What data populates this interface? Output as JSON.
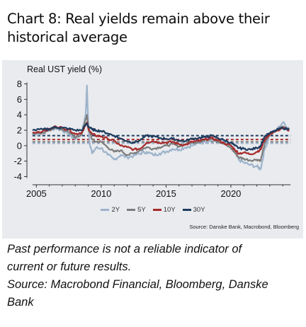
{
  "title_line1": "Chart 8: Real yields remain above their",
  "title_line2": "historical average",
  "footer": {
    "line1": "Past performance is not a reliable indicator of",
    "line2": "current or future results.",
    "line3": "Source: Macrobond Financial, Bloomberg, Danske",
    "line4": "Bank"
  },
  "chart_data": {
    "type": "line",
    "title": "",
    "ylabel": "Real UST yield (%)",
    "xlabel": "",
    "xlim": [
      2004.6,
      2024.7
    ],
    "ylim": [
      -4.6,
      8.6
    ],
    "x_ticks": [
      "2005",
      "2010",
      "2015",
      "2020"
    ],
    "y_ticks": [
      "8",
      "6",
      "4",
      "2",
      "0",
      "-2",
      "-4"
    ],
    "source": "Source: Danske Bank, Macrobond, Bloomberg",
    "legend_position": "bottom",
    "series": [
      {
        "name": "2Y",
        "color": "#9db3cc",
        "average": 0.3,
        "x": [
          2004.7,
          2005.5,
          2006.0,
          2006.5,
          2007.0,
          2007.5,
          2008.0,
          2008.5,
          2008.8,
          2008.9,
          2009.0,
          2009.1,
          2009.3,
          2009.6,
          2010.0,
          2010.5,
          2011.0,
          2011.5,
          2012.0,
          2012.5,
          2013.0,
          2013.5,
          2014.0,
          2014.5,
          2015.0,
          2015.5,
          2016.0,
          2016.5,
          2017.0,
          2017.5,
          2018.0,
          2018.5,
          2019.0,
          2019.5,
          2020.0,
          2020.3,
          2020.6,
          2021.0,
          2021.5,
          2022.0,
          2022.3,
          2022.6,
          2023.0,
          2023.5,
          2024.0,
          2024.5
        ],
        "values": [
          1.5,
          1.6,
          2.0,
          2.3,
          2.0,
          1.5,
          0.8,
          1.8,
          4.0,
          7.8,
          3.0,
          0.5,
          -1.0,
          -0.3,
          -0.3,
          -1.2,
          -1.8,
          -1.2,
          -1.5,
          -1.3,
          -1.0,
          -0.8,
          -1.2,
          -1.0,
          -0.8,
          -0.4,
          -0.5,
          -0.2,
          0.0,
          0.3,
          0.5,
          0.8,
          0.6,
          0.4,
          0.0,
          -0.8,
          -1.8,
          -2.2,
          -2.5,
          -2.7,
          -3.0,
          -0.5,
          1.5,
          2.0,
          3.0,
          2.2
        ]
      },
      {
        "name": "5Y",
        "color": "#7c7c7c",
        "average": 0.5,
        "x": [
          2004.7,
          2005.5,
          2006.0,
          2006.5,
          2007.0,
          2007.5,
          2008.0,
          2008.5,
          2008.9,
          2009.0,
          2009.3,
          2009.6,
          2010.0,
          2010.5,
          2011.0,
          2011.5,
          2012.0,
          2012.5,
          2013.0,
          2013.5,
          2014.0,
          2014.5,
          2015.0,
          2015.5,
          2016.0,
          2016.5,
          2017.0,
          2017.5,
          2018.0,
          2018.5,
          2019.0,
          2019.5,
          2020.0,
          2020.3,
          2020.6,
          2021.0,
          2021.5,
          2022.0,
          2022.3,
          2022.6,
          2023.0,
          2023.5,
          2024.0,
          2024.5
        ],
        "values": [
          1.6,
          1.7,
          2.0,
          2.4,
          2.1,
          1.8,
          1.0,
          1.5,
          4.0,
          2.5,
          0.8,
          0.5,
          0.5,
          -0.2,
          -0.8,
          -0.6,
          -1.2,
          -1.0,
          -0.6,
          -0.2,
          -0.4,
          -0.2,
          0.0,
          0.2,
          -0.1,
          0.2,
          0.4,
          0.5,
          0.7,
          1.0,
          0.5,
          0.2,
          -0.3,
          -0.9,
          -1.5,
          -1.7,
          -1.9,
          -1.8,
          -1.9,
          0.2,
          1.6,
          1.9,
          2.5,
          2.0
        ]
      },
      {
        "name": "10Y",
        "color": "#a82a2a",
        "average": 0.8,
        "x": [
          2004.7,
          2005.5,
          2006.0,
          2006.5,
          2007.0,
          2007.5,
          2008.0,
          2008.5,
          2008.9,
          2009.0,
          2009.3,
          2009.6,
          2010.0,
          2010.5,
          2011.0,
          2011.5,
          2012.0,
          2012.5,
          2013.0,
          2013.5,
          2014.0,
          2014.5,
          2015.0,
          2015.5,
          2016.0,
          2016.5,
          2017.0,
          2017.5,
          2018.0,
          2018.5,
          2019.0,
          2019.5,
          2020.0,
          2020.3,
          2020.6,
          2021.0,
          2021.5,
          2022.0,
          2022.3,
          2022.6,
          2023.0,
          2023.5,
          2024.0,
          2024.5
        ],
        "values": [
          1.7,
          1.9,
          2.1,
          2.5,
          2.3,
          2.1,
          1.5,
          1.7,
          3.0,
          2.2,
          1.5,
          1.3,
          1.2,
          0.9,
          0.6,
          0.0,
          -0.2,
          -0.5,
          -0.4,
          0.4,
          0.6,
          0.4,
          0.4,
          0.5,
          0.2,
          0.1,
          0.5,
          0.6,
          0.8,
          1.0,
          0.7,
          0.3,
          0.0,
          -0.5,
          -1.0,
          -0.9,
          -1.1,
          -0.8,
          -0.5,
          0.8,
          1.5,
          1.9,
          2.3,
          2.0
        ]
      },
      {
        "name": "30Y",
        "color": "#1d3b5e",
        "average": 1.3,
        "x": [
          2004.7,
          2005.5,
          2006.0,
          2006.5,
          2007.0,
          2007.5,
          2008.0,
          2008.5,
          2008.9,
          2009.0,
          2009.3,
          2009.6,
          2010.0,
          2010.5,
          2011.0,
          2011.5,
          2012.0,
          2012.5,
          2013.0,
          2013.5,
          2014.0,
          2014.5,
          2015.0,
          2015.5,
          2016.0,
          2016.5,
          2017.0,
          2017.5,
          2018.0,
          2018.5,
          2019.0,
          2019.5,
          2020.0,
          2020.3,
          2020.6,
          2021.0,
          2021.5,
          2022.0,
          2022.3,
          2022.6,
          2023.0,
          2023.5,
          2024.0,
          2024.5
        ],
        "values": [
          2.0,
          2.1,
          2.2,
          2.4,
          2.3,
          2.2,
          2.0,
          2.0,
          2.9,
          2.5,
          2.1,
          2.0,
          1.9,
          1.6,
          1.3,
          0.9,
          0.6,
          0.4,
          0.7,
          1.3,
          1.2,
          1.0,
          0.9,
          0.9,
          0.7,
          0.6,
          0.9,
          1.0,
          1.1,
          1.3,
          1.0,
          0.7,
          0.4,
          0.0,
          -0.3,
          -0.4,
          -0.5,
          -0.3,
          0.0,
          1.2,
          1.6,
          2.0,
          2.3,
          2.1
        ]
      }
    ]
  }
}
